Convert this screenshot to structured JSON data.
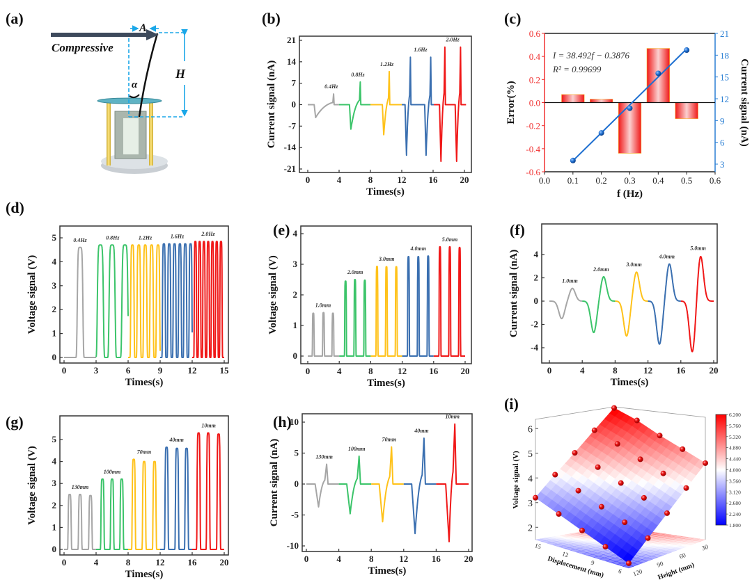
{
  "panel_a": {
    "label": "(a)",
    "force_label": "Compressive",
    "amplitude_label": "A",
    "height_label": "H",
    "angle_label": "α"
  },
  "chart_data": [
    {
      "id": "b",
      "label": "(b)",
      "type": "line",
      "wave": "bipolar",
      "xlabel": "Times(s)",
      "ylabel": "Current signal (nA)",
      "xlim": [
        0,
        20
      ],
      "ylim": [
        -21,
        21
      ],
      "x_ticks": [
        0,
        4,
        8,
        12,
        16,
        20
      ],
      "y_ticks": [
        -21,
        -14,
        -7,
        0,
        7,
        14,
        21
      ],
      "groups": [
        {
          "label": "0.4Hz",
          "color": "#a6a6a6",
          "range": [
            0,
            4
          ],
          "pulses": [
            {
              "t_min": 1.0,
              "min": -4.2,
              "t_max": 3.3,
              "max": 3.5
            }
          ]
        },
        {
          "label": "0.8Hz",
          "color": "#3cc46a",
          "range": [
            4,
            8
          ],
          "pulses": [
            {
              "t_min": 5.5,
              "min": -8,
              "t_max": 6.7,
              "max": 7.4
            }
          ]
        },
        {
          "label": "1.2Hz",
          "color": "#ffc21a",
          "range": [
            8,
            12
          ],
          "pulses": [
            {
              "t_min": 9.7,
              "min": -9.8,
              "t_max": 10.4,
              "max": 10.8
            }
          ]
        },
        {
          "label": "1.6Hz",
          "color": "#3a6fb0",
          "range": [
            12,
            16.1
          ],
          "pulses": [
            {
              "t_min": 12.6,
              "min": -16.5,
              "t_max": 13.1,
              "max": 15.5
            },
            {
              "t_min": 15.1,
              "min": -16.5,
              "t_max": 15.7,
              "max": 15.5
            }
          ]
        },
        {
          "label": "2.0Hz",
          "color": "#f01818",
          "range": [
            16.1,
            20.2
          ],
          "pulses": [
            {
              "t_min": 17.0,
              "min": -18.5,
              "t_max": 17.5,
              "max": 18.8
            },
            {
              "t_min": 19.0,
              "min": -18.5,
              "t_max": 19.5,
              "max": 18.8
            }
          ]
        }
      ]
    },
    {
      "id": "c",
      "label": "(c)",
      "type": "bar+line",
      "xlabel": "f (Hz)",
      "ylabel_left": "Error(%)",
      "ylabel_right": "Current signal (nA)",
      "xlim": [
        0,
        0.6
      ],
      "ylim_left": [
        -0.6,
        0.6
      ],
      "ylim_right": [
        3,
        21
      ],
      "x_ticks": [
        0.0,
        0.1,
        0.2,
        0.3,
        0.4,
        0.5,
        0.6
      ],
      "y_ticks_left": [
        -0.6,
        -0.4,
        -0.2,
        0.0,
        0.2,
        0.4,
        0.6
      ],
      "y_ticks_right": [
        3,
        6,
        9,
        12,
        15,
        18,
        21
      ],
      "x": [
        0.1,
        0.2,
        0.3,
        0.4,
        0.5
      ],
      "error_values": [
        0.07,
        0.03,
        -0.44,
        0.47,
        -0.14
      ],
      "current_values": [
        3.5,
        7.3,
        10.7,
        15.5,
        18.7
      ],
      "equation": "I = 38.492f − 0.3876",
      "r_squared": "R² = 0.99699",
      "colors": {
        "bars": "#f01818",
        "line": "#1e6fd0",
        "left_axis": "#f03030",
        "right_axis": "#2a7fd4"
      }
    },
    {
      "id": "d",
      "label": "(d)",
      "type": "line",
      "wave": "unipolar",
      "xlabel": "Times(s)",
      "ylabel": "Voltage signal (V)",
      "xlim": [
        0,
        15
      ],
      "ylim": [
        0,
        5
      ],
      "x_ticks": [
        0,
        3,
        6,
        9,
        12,
        15
      ],
      "y_ticks": [
        0,
        1,
        2,
        3,
        4,
        5
      ],
      "groups": [
        {
          "label": "0.4Hz",
          "color": "#a6a6a6",
          "range": [
            0,
            3
          ],
          "peaks": [
            {
              "t": 1.5,
              "v": 4.6
            }
          ]
        },
        {
          "label": "0.8Hz",
          "color": "#3cc46a",
          "range": [
            3,
            6
          ],
          "peaks": [
            {
              "t": 3.4,
              "v": 4.7
            },
            {
              "t": 4.5,
              "v": 4.7
            },
            {
              "t": 5.7,
              "v": 4.7
            }
          ]
        },
        {
          "label": "1.2Hz",
          "color": "#ffc21a",
          "range": [
            6,
            9
          ],
          "peaks": [
            {
              "t": 6.4,
              "v": 4.7
            },
            {
              "t": 7.0,
              "v": 4.7
            },
            {
              "t": 7.6,
              "v": 4.7
            },
            {
              "t": 8.2,
              "v": 4.7
            },
            {
              "t": 8.8,
              "v": 4.7
            }
          ]
        },
        {
          "label": "1.6Hz",
          "color": "#3a6fb0",
          "range": [
            9,
            12
          ],
          "peaks": [
            {
              "t": 9.35,
              "v": 4.75
            },
            {
              "t": 9.85,
              "v": 4.75
            },
            {
              "t": 10.35,
              "v": 4.75
            },
            {
              "t": 10.85,
              "v": 4.75
            },
            {
              "t": 11.35,
              "v": 4.75
            },
            {
              "t": 11.85,
              "v": 4.75
            }
          ]
        },
        {
          "label": "2.0Hz",
          "color": "#f01818",
          "range": [
            12,
            15
          ],
          "peaks": [
            {
              "t": 12.3,
              "v": 4.85
            },
            {
              "t": 12.7,
              "v": 4.85
            },
            {
              "t": 13.1,
              "v": 4.85
            },
            {
              "t": 13.5,
              "v": 4.85
            },
            {
              "t": 13.9,
              "v": 4.85
            },
            {
              "t": 14.3,
              "v": 4.85
            },
            {
              "t": 14.7,
              "v": 4.85
            }
          ]
        }
      ]
    },
    {
      "id": "e",
      "label": "(e)",
      "type": "line",
      "wave": "unipolar",
      "xlabel": "Times(s)",
      "ylabel": "Voltage signal (V)",
      "xlim": [
        0,
        20
      ],
      "ylim": [
        0,
        4
      ],
      "x_ticks": [
        0,
        4,
        8,
        12,
        16,
        20
      ],
      "y_ticks": [
        0,
        1,
        2,
        3,
        4
      ],
      "groups": [
        {
          "label": "1.0mm",
          "color": "#a6a6a6",
          "range": [
            0,
            4
          ],
          "peaks": [
            {
              "t": 0.7,
              "v": 1.4
            },
            {
              "t": 2.0,
              "v": 1.42
            },
            {
              "t": 3.2,
              "v": 1.4
            }
          ]
        },
        {
          "label": "2.0mm",
          "color": "#3cc46a",
          "range": [
            4,
            8
          ],
          "peaks": [
            {
              "t": 4.8,
              "v": 2.45
            },
            {
              "t": 6.0,
              "v": 2.5
            },
            {
              "t": 7.25,
              "v": 2.48
            }
          ]
        },
        {
          "label": "3.0mm",
          "color": "#ffc21a",
          "range": [
            8,
            12
          ],
          "peaks": [
            {
              "t": 8.8,
              "v": 2.93
            },
            {
              "t": 10.0,
              "v": 2.92
            },
            {
              "t": 11.25,
              "v": 2.92
            }
          ]
        },
        {
          "label": "4.0mm",
          "color": "#3a6fb0",
          "range": [
            12,
            16
          ],
          "peaks": [
            {
              "t": 12.8,
              "v": 3.25
            },
            {
              "t": 14.05,
              "v": 3.25
            },
            {
              "t": 15.3,
              "v": 3.27
            }
          ]
        },
        {
          "label": "5.0mm",
          "color": "#f01818",
          "range": [
            16,
            20
          ],
          "peaks": [
            {
              "t": 16.8,
              "v": 3.57
            },
            {
              "t": 18.05,
              "v": 3.57
            },
            {
              "t": 19.3,
              "v": 3.55
            }
          ]
        }
      ]
    },
    {
      "id": "f",
      "label": "(f)",
      "type": "line",
      "wave": "smooth",
      "xlabel": "Times(s)",
      "ylabel": "Current signal (nA)",
      "xlim": [
        0,
        20
      ],
      "ylim": [
        -4,
        4
      ],
      "x_ticks": [
        0,
        4,
        8,
        12,
        16,
        20
      ],
      "y_ticks": [
        -4,
        -2,
        0,
        2,
        4
      ],
      "groups": [
        {
          "label": "1.0mm",
          "color": "#a6a6a6",
          "range": [
            0,
            4
          ],
          "pulses": [
            {
              "t_min": 1.5,
              "min": -1.5,
              "t_max": 2.8,
              "max": 1.1
            }
          ]
        },
        {
          "label": "2.0mm",
          "color": "#3cc46a",
          "range": [
            4,
            8
          ],
          "pulses": [
            {
              "t_min": 5.4,
              "min": -2.7,
              "t_max": 6.6,
              "max": 2.1
            }
          ]
        },
        {
          "label": "3.0mm",
          "color": "#ffc21a",
          "range": [
            8,
            12
          ],
          "pulses": [
            {
              "t_min": 9.4,
              "min": -3.0,
              "t_max": 10.6,
              "max": 2.5
            }
          ]
        },
        {
          "label": "4.0mm",
          "color": "#3a6fb0",
          "range": [
            12,
            16
          ],
          "pulses": [
            {
              "t_min": 13.4,
              "min": -3.7,
              "t_max": 14.6,
              "max": 3.2
            }
          ]
        },
        {
          "label": "5.0mm",
          "color": "#f01818",
          "range": [
            16,
            20
          ],
          "pulses": [
            {
              "t_min": 17.4,
              "min": -4.4,
              "t_max": 18.4,
              "max": 3.9
            }
          ]
        }
      ]
    },
    {
      "id": "g",
      "label": "(g)",
      "type": "line",
      "wave": "unipolar",
      "xlabel": "Times(s)",
      "ylabel": "Voltage signal (V)",
      "xlim": [
        0,
        20
      ],
      "ylim": [
        0,
        5
      ],
      "x_ticks": [
        0,
        4,
        8,
        12,
        16,
        20
      ],
      "y_ticks": [
        0,
        1,
        2,
        3,
        4,
        5
      ],
      "groups": [
        {
          "label": "130mm",
          "color": "#a6a6a6",
          "range": [
            0,
            4
          ],
          "peaks": [
            {
              "t": 0.7,
              "v": 2.5
            },
            {
              "t": 2.0,
              "v": 2.5
            },
            {
              "t": 3.3,
              "v": 2.45
            }
          ]
        },
        {
          "label": "100mm",
          "color": "#3cc46a",
          "range": [
            4,
            8
          ],
          "peaks": [
            {
              "t": 4.8,
              "v": 3.2
            },
            {
              "t": 6.0,
              "v": 3.2
            },
            {
              "t": 7.2,
              "v": 3.2
            }
          ]
        },
        {
          "label": "70mm",
          "color": "#ffc21a",
          "range": [
            8,
            12
          ],
          "peaks": [
            {
              "t": 8.7,
              "v": 4.1
            },
            {
              "t": 10.0,
              "v": 4.0
            },
            {
              "t": 11.3,
              "v": 4.0
            }
          ]
        },
        {
          "label": "40mm",
          "color": "#3a6fb0",
          "range": [
            12,
            16
          ],
          "peaks": [
            {
              "t": 12.8,
              "v": 4.65
            },
            {
              "t": 14.1,
              "v": 4.6
            },
            {
              "t": 15.3,
              "v": 4.6
            }
          ]
        },
        {
          "label": "10mm",
          "color": "#f01818",
          "range": [
            16,
            20
          ],
          "peaks": [
            {
              "t": 16.8,
              "v": 5.3
            },
            {
              "t": 18.0,
              "v": 5.3
            },
            {
              "t": 19.3,
              "v": 5.25
            }
          ]
        }
      ]
    },
    {
      "id": "h",
      "label": "(h)",
      "type": "line",
      "wave": "bipolar",
      "xlabel": "Times(s)",
      "ylabel": "Current signal (nA)",
      "xlim": [
        0,
        20
      ],
      "ylim": [
        -10,
        10
      ],
      "x_ticks": [
        0,
        4,
        8,
        12,
        16,
        20
      ],
      "y_ticks": [
        -10,
        -5,
        0,
        5,
        10
      ],
      "groups": [
        {
          "label": "130mm",
          "color": "#a6a6a6",
          "range": [
            0,
            4
          ],
          "pulses": [
            {
              "t_min": 1.5,
              "min": -3.7,
              "t_max": 2.5,
              "max": 3.2
            }
          ]
        },
        {
          "label": "100mm",
          "color": "#3cc46a",
          "range": [
            4,
            8
          ],
          "pulses": [
            {
              "t_min": 5.4,
              "min": -4.8,
              "t_max": 6.5,
              "max": 4.5
            }
          ]
        },
        {
          "label": "70mm",
          "color": "#ffc21a",
          "range": [
            8,
            12
          ],
          "pulses": [
            {
              "t_min": 9.4,
              "min": -6.1,
              "t_max": 10.5,
              "max": 6.0
            }
          ]
        },
        {
          "label": "40mm",
          "color": "#3a6fb0",
          "range": [
            12,
            16
          ],
          "pulses": [
            {
              "t_min": 13.4,
              "min": -8.0,
              "t_max": 14.5,
              "max": 7.4
            }
          ]
        },
        {
          "label": "10mm",
          "color": "#f01818",
          "range": [
            16,
            20
          ],
          "pulses": [
            {
              "t_min": 17.6,
              "min": -9.3,
              "t_max": 18.3,
              "max": 9.7
            }
          ]
        }
      ]
    },
    {
      "id": "i",
      "label": "(i)",
      "type": "surface",
      "zlabel": "Voltage signal (V)",
      "xlabel": "Displacement (mm)",
      "ylabel": "Height (mm)",
      "x_ticks": [
        "15",
        "12",
        "9",
        "6"
      ],
      "y_ticks": [
        "30",
        "60",
        "90",
        "120"
      ],
      "z_ticks": [
        2,
        3,
        4,
        5,
        6
      ],
      "colorbar_range": [
        1.8,
        6.2
      ],
      "colorbar_ticks": [
        "6.200",
        "5.760",
        "5.320",
        "4.880",
        "4.440",
        "4.000",
        "3.560",
        "3.120",
        "2.680",
        "2.240",
        "1.800"
      ],
      "colormap": [
        "#0000ff",
        "#ffffff",
        "#ff0000"
      ],
      "z": [
        [
          1.7,
          2.43,
          3.15,
          3.88,
          4.6
        ],
        [
          2.08,
          2.82,
          3.56,
          4.3,
          5.03
        ],
        [
          2.45,
          3.2,
          3.95,
          4.7,
          5.45
        ],
        [
          2.83,
          3.6,
          4.38,
          5.15,
          5.93
        ],
        [
          3.2,
          4.0,
          4.75,
          5.53,
          6.3
        ]
      ]
    }
  ]
}
